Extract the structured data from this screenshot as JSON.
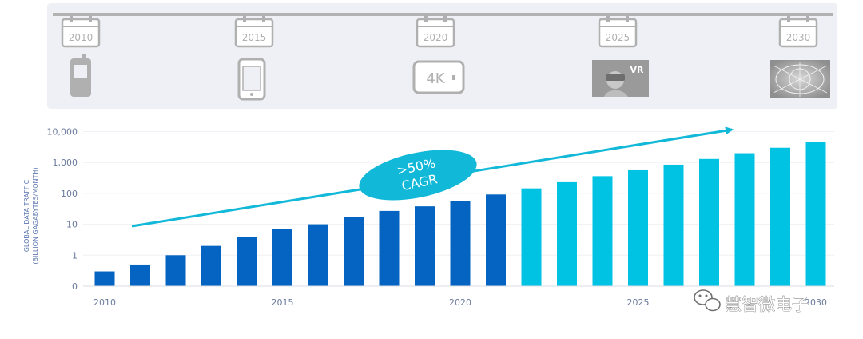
{
  "timeline": [
    {
      "year": "2010",
      "device": "feature-phone"
    },
    {
      "year": "2015",
      "device": "smartphone"
    },
    {
      "year": "2020",
      "device": "4k-display",
      "device_label": "4K"
    },
    {
      "year": "2025",
      "device": "vr-headset",
      "device_label": "VR"
    },
    {
      "year": "2030",
      "device": "holographic-network"
    }
  ],
  "colors": {
    "historical": "#0563c1",
    "forecast": "#00c3e3",
    "arrow": "#12b8d8",
    "panel": "#eef0f5",
    "icon": "#b0b0b0"
  },
  "annotation": {
    "line1": ">50%",
    "line2": "CAGR"
  },
  "watermark": {
    "text": "慧智微电子",
    "icon": "wechat-icon"
  },
  "chart_data": {
    "type": "bar",
    "ylabel_line1": "GLOBAL DATA TRAFFIC",
    "ylabel_line2": "(BILLION GAGABYTES/MONTH)",
    "xlabel": "",
    "y_scale": "log",
    "y_ticks": [
      "0",
      "1",
      "10",
      "100",
      "1,000",
      "10,000"
    ],
    "x_ticks": [
      "2010",
      "2015",
      "2020",
      "2025",
      "2030"
    ],
    "grid": true,
    "categories": [
      2010,
      2011,
      2012,
      2013,
      2014,
      2015,
      2016,
      2017,
      2018,
      2019,
      2020,
      2021,
      2022,
      2023,
      2024,
      2025,
      2026,
      2027,
      2028,
      2029,
      2030
    ],
    "series": [
      {
        "kind": "historical",
        "values": [
          0.3,
          0.5,
          1,
          2,
          4,
          7,
          10,
          17,
          27,
          38,
          58,
          92,
          null,
          null,
          null,
          null,
          null,
          null,
          null,
          null,
          null
        ]
      },
      {
        "kind": "forecast",
        "values": [
          null,
          null,
          null,
          null,
          null,
          null,
          null,
          null,
          null,
          null,
          null,
          null,
          145,
          230,
          360,
          560,
          850,
          1300,
          2000,
          3000,
          4600
        ]
      }
    ]
  }
}
